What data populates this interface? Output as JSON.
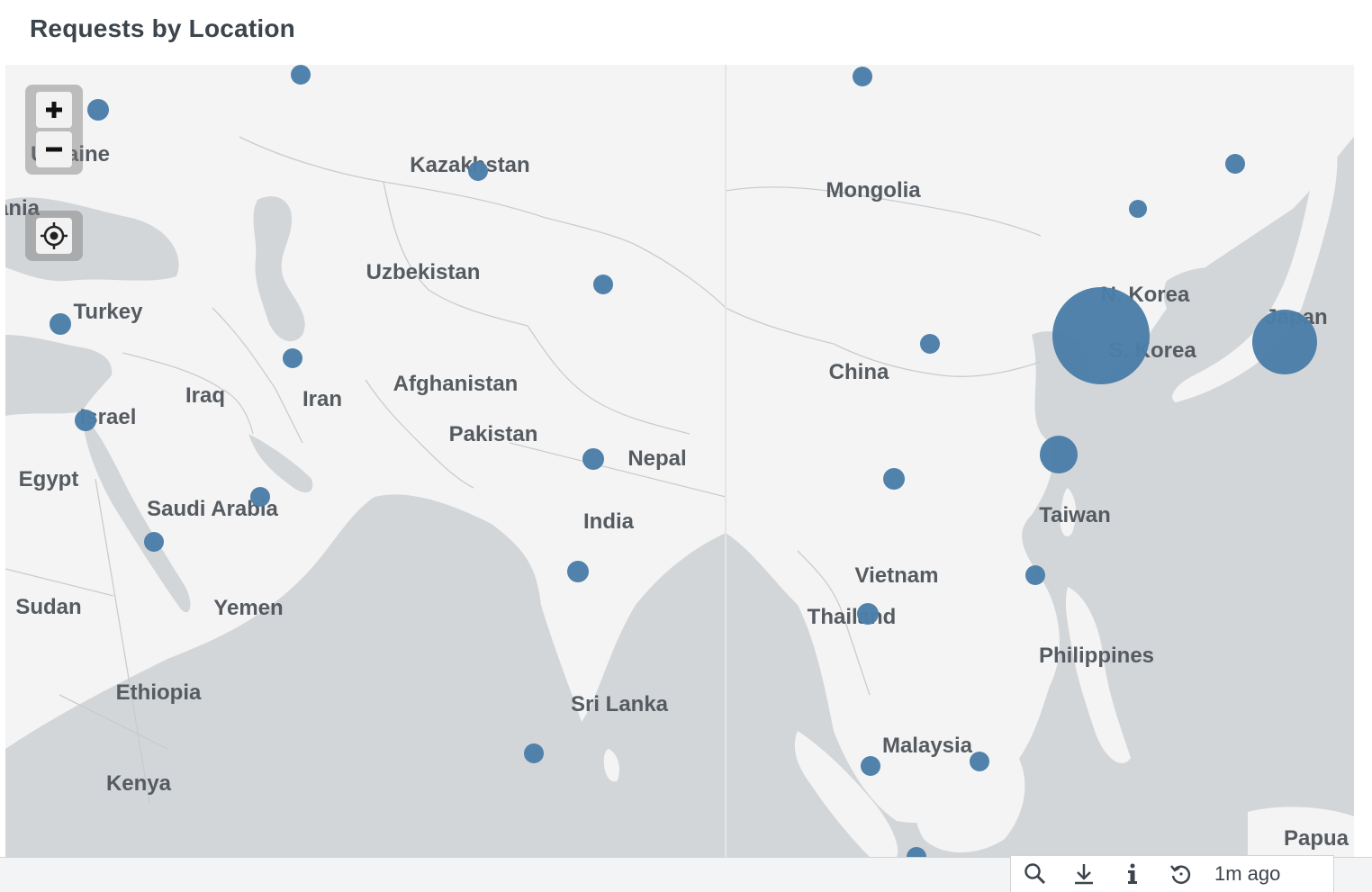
{
  "panel": {
    "title": "Requests by Location"
  },
  "map": {
    "labels": [
      {
        "name": "ukraine",
        "text": "Ukraine"
      },
      {
        "name": "romania-partial",
        "text": "ania"
      },
      {
        "name": "kazakhstan",
        "text": "Kazakhstan"
      },
      {
        "name": "mongolia",
        "text": "Mongolia"
      },
      {
        "name": "uzbekistan",
        "text": "Uzbekistan"
      },
      {
        "name": "turkey",
        "text": "Turkey"
      },
      {
        "name": "north-korea",
        "text": "N. Korea"
      },
      {
        "name": "japan",
        "text": "Japan"
      },
      {
        "name": "south-korea",
        "text": "S. Korea"
      },
      {
        "name": "china",
        "text": "China"
      },
      {
        "name": "afghanistan",
        "text": "Afghanistan"
      },
      {
        "name": "iraq",
        "text": "Iraq"
      },
      {
        "name": "iran",
        "text": "Iran"
      },
      {
        "name": "israel",
        "text": "Israel"
      },
      {
        "name": "pakistan",
        "text": "Pakistan"
      },
      {
        "name": "nepal",
        "text": "Nepal"
      },
      {
        "name": "egypt",
        "text": "Egypt"
      },
      {
        "name": "saudi-arabia",
        "text": "Saudi Arabia"
      },
      {
        "name": "taiwan",
        "text": "Taiwan"
      },
      {
        "name": "india",
        "text": "India"
      },
      {
        "name": "vietnam",
        "text": "Vietnam"
      },
      {
        "name": "sudan",
        "text": "Sudan"
      },
      {
        "name": "yemen",
        "text": "Yemen"
      },
      {
        "name": "thailand",
        "text": "Thailand"
      },
      {
        "name": "philippines",
        "text": "Philippines"
      },
      {
        "name": "ethiopia",
        "text": "Ethiopia"
      },
      {
        "name": "sri-lanka",
        "text": "Sri Lanka"
      },
      {
        "name": "malaysia",
        "text": "Malaysia"
      },
      {
        "name": "kenya",
        "text": "Kenya"
      },
      {
        "name": "papua",
        "text": "Papua"
      }
    ],
    "bubble_color": "#4b7ea8",
    "land_color": "#f4f4f4",
    "water_color": "#d3d6d9",
    "bubble_count": 28
  },
  "controls": {
    "zoom_in_icon": "plus-icon",
    "zoom_out_icon": "minus-icon",
    "locate_icon": "crosshair-icon"
  },
  "toolbar": {
    "icons": [
      "search-icon",
      "download-icon",
      "info-icon",
      "refresh-icon"
    ],
    "time_label": "1m ago"
  }
}
